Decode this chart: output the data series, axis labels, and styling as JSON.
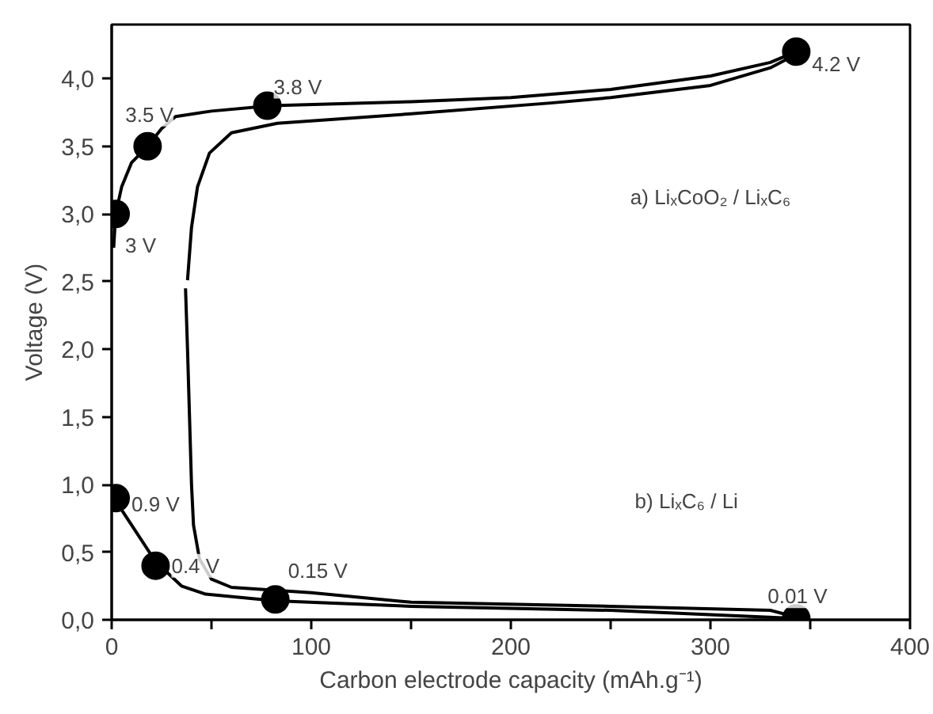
{
  "chart_data": {
    "type": "line",
    "xlabel": "Carbon electrode capacity (mAh.g⁻¹)",
    "ylabel": "Voltage (V)",
    "xlim": [
      0,
      400
    ],
    "ylim": [
      0,
      4.4
    ],
    "xticks": [
      0,
      {
        "value": 50,
        "label": null
      },
      100,
      {
        "value": 150,
        "label": null
      },
      200,
      {
        "value": 250,
        "label": null
      },
      300,
      {
        "value": 350,
        "label": null
      },
      400
    ],
    "yticks": [
      {
        "value": 0,
        "label": "0,0"
      },
      {
        "value": 0.5,
        "label": "0,5"
      },
      {
        "value": 1,
        "label": "1,0"
      },
      {
        "value": 1.5,
        "label": "1,5"
      },
      {
        "value": 2,
        "label": "2,0"
      },
      {
        "value": 2.5,
        "label": "2,5"
      },
      {
        "value": 3,
        "label": "3,0"
      },
      {
        "value": 3.5,
        "label": "3,5"
      },
      {
        "value": 4,
        "label": "4,0"
      }
    ],
    "grid": false,
    "line_style": "solid",
    "annotations": [
      "a) LiₓCoO₂ / LiₓC₆",
      "b) LiₓC₆ / Li"
    ],
    "series": [
      {
        "color": "#000000",
        "x": [
          1,
          2,
          5,
          10,
          18,
          25,
          32,
          50,
          80,
          150,
          200,
          250,
          300,
          330,
          343
        ],
        "values": [
          2.75,
          3.0,
          3.2,
          3.38,
          3.5,
          3.63,
          3.72,
          3.76,
          3.8,
          3.83,
          3.86,
          3.92,
          4.02,
          4.12,
          4.2
        ]
      },
      {
        "color": "#000000",
        "x": [
          343,
          330,
          300,
          250,
          220,
          150,
          83,
          60,
          49,
          43,
          40,
          38
        ],
        "values": [
          4.18,
          4.08,
          3.95,
          3.86,
          3.82,
          3.74,
          3.67,
          3.6,
          3.45,
          3.2,
          2.9,
          2.51
        ]
      },
      {
        "color": "#000000",
        "x": [
          37,
          38,
          39,
          40,
          41,
          44,
          50,
          60,
          100,
          150,
          250,
          330,
          343
        ],
        "values": [
          2.45,
          2.0,
          1.5,
          1.0,
          0.7,
          0.45,
          0.3,
          0.24,
          0.2,
          0.13,
          0.1,
          0.07,
          0.02
        ]
      },
      {
        "color": "#000000",
        "x": [
          0,
          2,
          10,
          22,
          35,
          47,
          82,
          150,
          250,
          343
        ],
        "values": [
          0.98,
          0.88,
          0.7,
          0.43,
          0.25,
          0.19,
          0.14,
          0.1,
          0.07,
          0.01
        ]
      },
      {
        "type": "scatter",
        "marker": "circle",
        "color": "#000000",
        "x": [
          2,
          18,
          78,
          343,
          2,
          22,
          82,
          343
        ],
        "values": [
          3.0,
          3.5,
          3.8,
          4.2,
          0.9,
          0.4,
          0.15,
          0.01
        ],
        "value_labels": [
          "3 V",
          "3.5 V",
          "3.8 V",
          "4.2 V",
          "0.9 V",
          "0.4 V",
          "0.15 V",
          "0.01 V"
        ]
      }
    ]
  }
}
